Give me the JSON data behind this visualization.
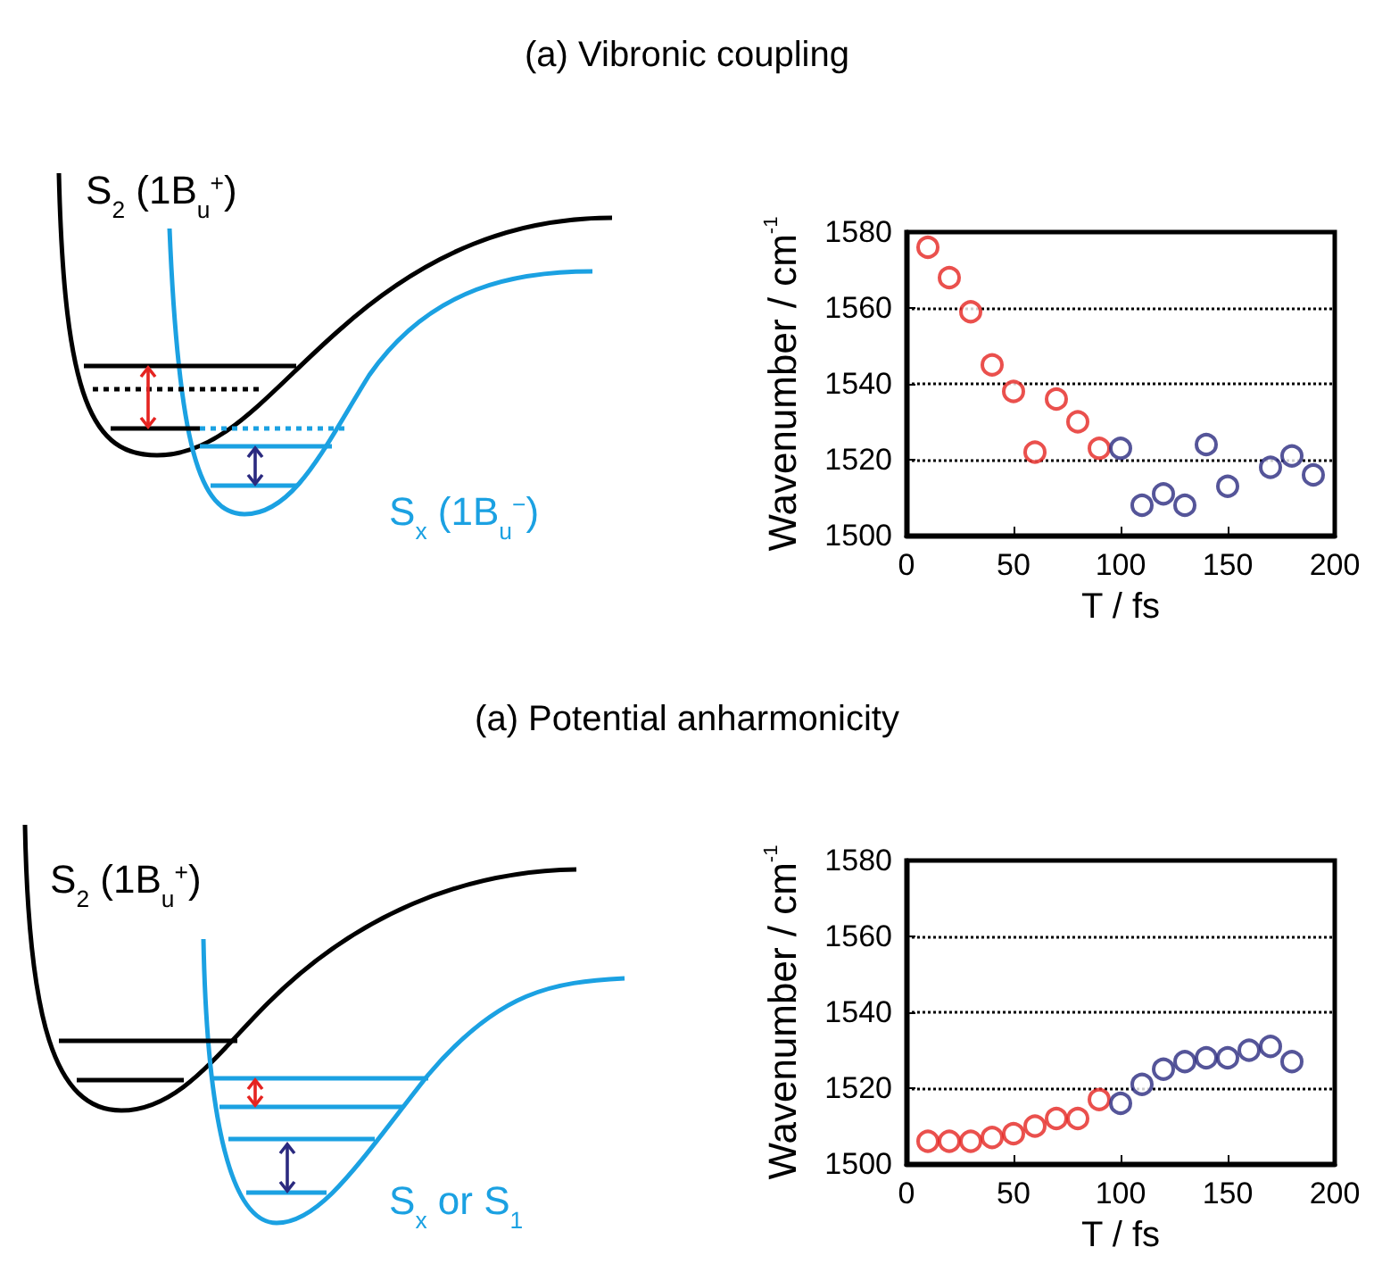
{
  "chart_data": [
    {
      "type": "other",
      "annotations": [
        "S$_{2}$ (1B$_{u}$$^{+}$)",
        "S$_{x}$ (1B$_{u}$$^{−}$)"
      ]
    },
    {
      "type": "scatter",
      "title": "(a) Vibronic coupling",
      "xlabel": "T / fs",
      "ylabel": "Wavenumber / cm$^{-1}$",
      "xlim": [
        0,
        200
      ],
      "xticks": [
        0,
        50,
        100,
        150,
        200
      ],
      "ylim": [
        1500,
        1580
      ],
      "yticks": [
        1500,
        1520,
        1540,
        1560,
        1580
      ],
      "grid": "y",
      "marker": "circle",
      "series": [
        {
          "color": "#e52421",
          "x": [
            10,
            20,
            30,
            40,
            50,
            60,
            70,
            80,
            90
          ],
          "values": [
            1576,
            1568,
            1559,
            1545,
            1538,
            1522,
            1536,
            1530,
            1523
          ]
        },
        {
          "color": "#2b2a7f",
          "x": [
            100,
            110,
            120,
            130,
            140,
            150,
            170,
            180,
            190
          ],
          "values": [
            1523,
            1508,
            1511,
            1508,
            1524,
            1513,
            1518,
            1521,
            1516
          ]
        }
      ]
    },
    {
      "type": "other",
      "annotations": [
        "S$_{2}$ (1B$_{u}$$^{+}$)",
        "S$_{x}$ or S$_{1}$"
      ]
    },
    {
      "type": "scatter",
      "title": "(a) Potential anharmonicity",
      "xlabel": "T / fs",
      "ylabel": "Wavenumber / cm$^{-1}$",
      "xlim": [
        0,
        200
      ],
      "xticks": [
        0,
        50,
        100,
        150,
        200
      ],
      "ylim": [
        1500,
        1580
      ],
      "yticks": [
        1500,
        1520,
        1540,
        1560,
        1580
      ],
      "grid": "y",
      "marker": "circle",
      "series": [
        {
          "color": "#e52421",
          "x": [
            10,
            20,
            30,
            40,
            50,
            60,
            70,
            80,
            90
          ],
          "values": [
            1506,
            1506,
            1506,
            1507,
            1508,
            1510,
            1512,
            1512,
            1517
          ]
        },
        {
          "color": "#2b2a7f",
          "x": [
            100,
            110,
            120,
            130,
            140,
            150,
            160,
            170,
            180
          ],
          "values": [
            1516,
            1521,
            1525,
            1527,
            1528,
            1528,
            1530,
            1531,
            1527
          ]
        }
      ]
    }
  ]
}
